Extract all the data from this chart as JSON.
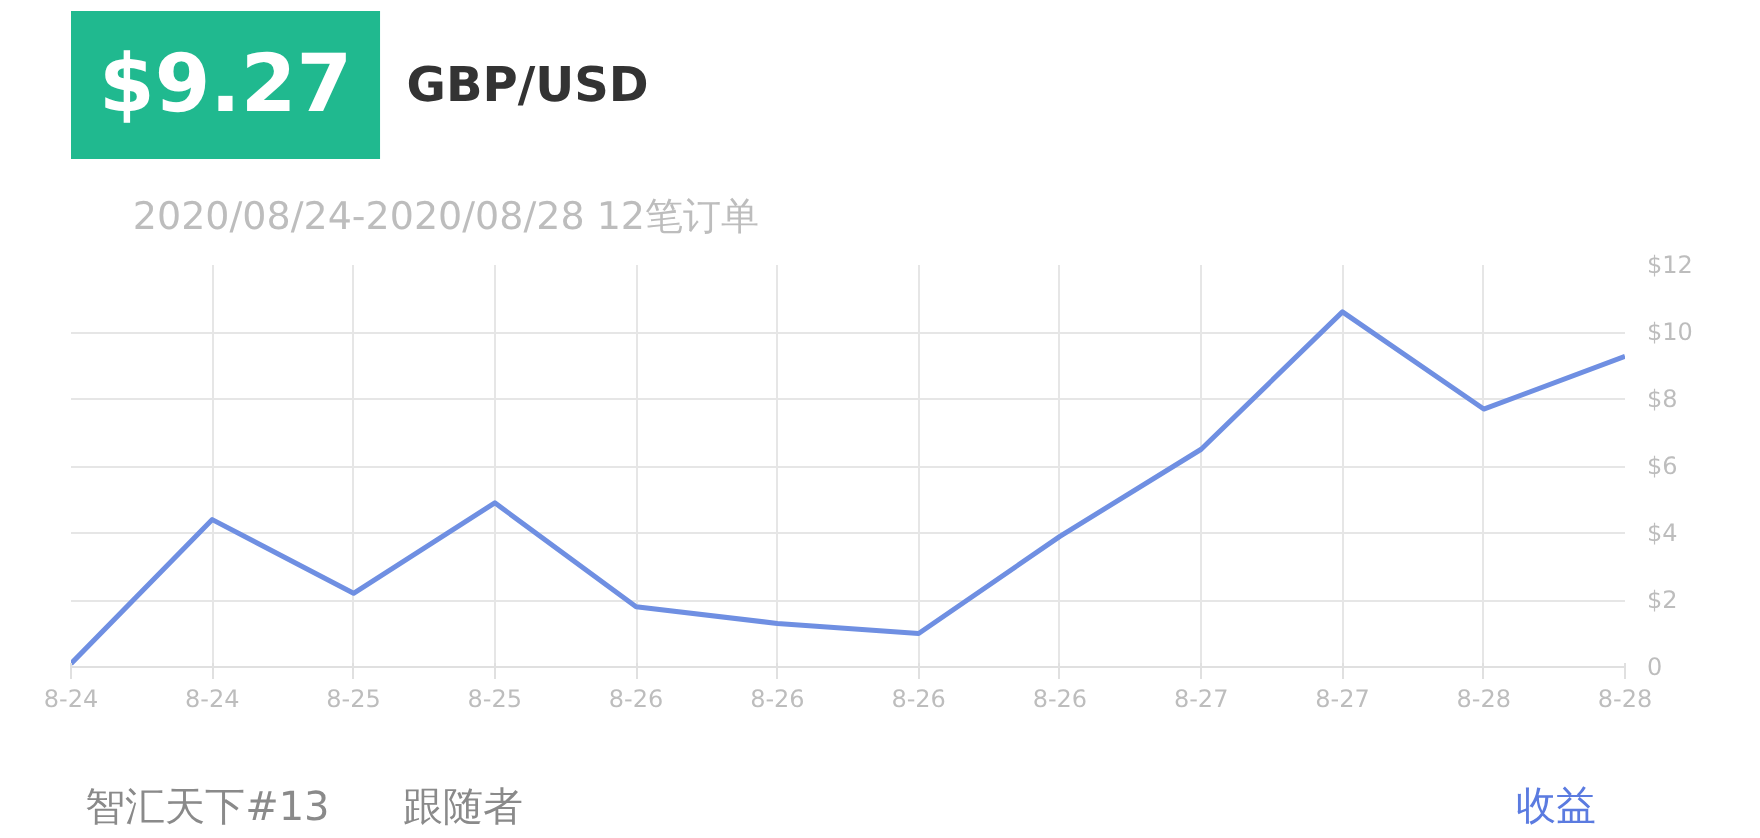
{
  "chart_data": {
    "type": "line",
    "title": "GBP/USD",
    "subtitle": "2020/08/24-2020/08/28 12笔订单",
    "annotations": [
      "$9.27",
      "智汇天下#13",
      "跟随者"
    ],
    "categories": [
      "8-24",
      "8-24",
      "8-25",
      "8-25",
      "8-26",
      "8-26",
      "8-26",
      "8-26",
      "8-27",
      "8-27",
      "8-28",
      "8-28"
    ],
    "series": [
      {
        "name": "收益",
        "color": "#6f8fe2",
        "values": [
          0.1,
          4.4,
          2.2,
          4.9,
          1.8,
          1.3,
          1.0,
          3.9,
          6.5,
          10.6,
          7.7,
          9.27
        ]
      }
    ],
    "ylim": [
      0,
      12
    ],
    "yticks": [
      {
        "value": 0,
        "label": "0"
      },
      {
        "value": 2,
        "label": "$2"
      },
      {
        "value": 4,
        "label": "$4"
      },
      {
        "value": 6,
        "label": "$6"
      },
      {
        "value": 8,
        "label": "$8"
      },
      {
        "value": 10,
        "label": "$10"
      },
      {
        "value": 12,
        "label": "$12"
      }
    ],
    "grid": true,
    "legend": "bottom right",
    "marker": "none",
    "line_style": "solid"
  }
}
